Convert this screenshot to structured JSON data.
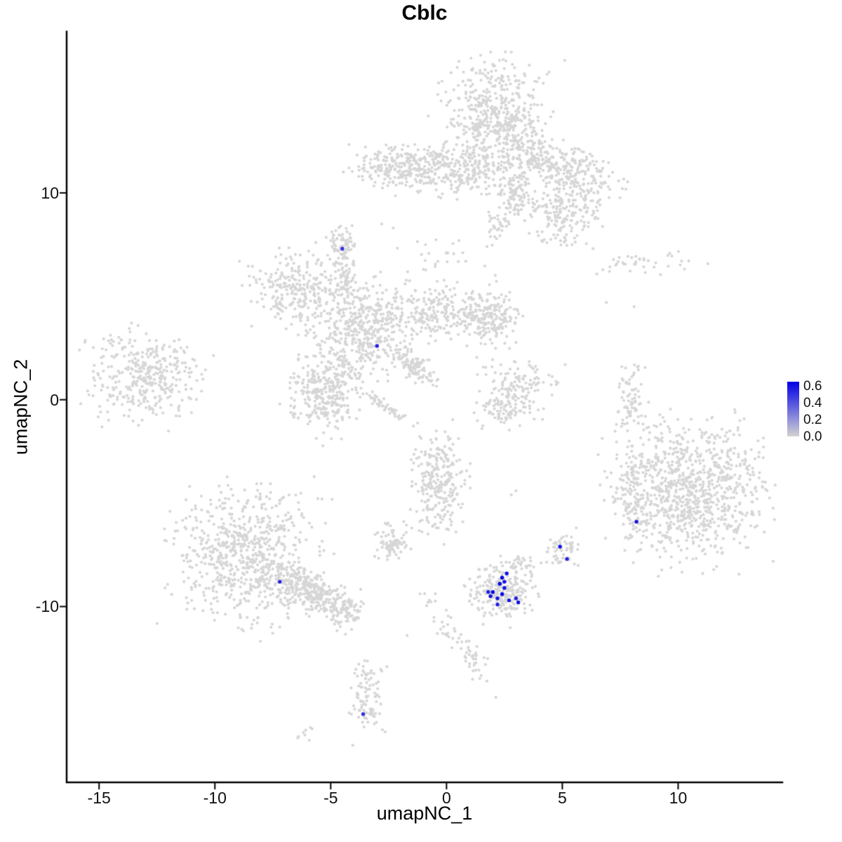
{
  "title": "Cblc",
  "axes": {
    "x_label": "umapNC_1",
    "y_label": "umapNC_2",
    "x_ticks": [
      -15,
      -10,
      -5,
      0,
      5,
      10
    ],
    "y_ticks": [
      10,
      0,
      -10
    ]
  },
  "legend": {
    "ticks": [
      "0.6",
      "0.4",
      "0.2",
      "0.0"
    ],
    "max_value": 0.65,
    "color_high": "#0000E6",
    "color_low": "#D3D3D3"
  },
  "chart_data": {
    "type": "scatter",
    "title": "Cblc",
    "xlabel": "umapNC_1",
    "ylabel": "umapNC_2",
    "xlim": [
      -16.4,
      14.5
    ],
    "ylim": [
      -18.5,
      17.8
    ],
    "seed": 42,
    "point_radius": 2.1,
    "highlight_radius": 2.7,
    "point_color_low": "#D6D6D6",
    "point_color_high": "#0000E6",
    "clusters": [
      {
        "name": "top-main",
        "cx": 2.1,
        "cy": 13.6,
        "sx": 1.05,
        "sy": 1.3,
        "n": 520,
        "rot": 0
      },
      {
        "name": "top-right-arm",
        "cx": 4.6,
        "cy": 11.4,
        "sx": 1.3,
        "sy": 0.55,
        "n": 330,
        "rot": -20
      },
      {
        "name": "top-band-left",
        "cx": -2.0,
        "cy": 11.3,
        "sx": 0.9,
        "sy": 0.5,
        "n": 230,
        "rot": 0
      },
      {
        "name": "top-band-mid",
        "cx": 0.6,
        "cy": 11.1,
        "sx": 1.1,
        "sy": 0.6,
        "n": 230,
        "rot": 0
      },
      {
        "name": "top-lobe-right",
        "cx": 5.0,
        "cy": 9.1,
        "sx": 0.75,
        "sy": 0.8,
        "n": 190,
        "rot": 25
      },
      {
        "name": "top-bridge",
        "cx": 2.95,
        "cy": 9.8,
        "sx": 0.3,
        "sy": 0.5,
        "n": 90,
        "rot": 0
      },
      {
        "name": "top-bridge-2",
        "cx": 2.2,
        "cy": 8.4,
        "sx": 0.3,
        "sy": 0.4,
        "n": 35,
        "rot": 0
      },
      {
        "name": "top-scatter-below",
        "cx": -0.3,
        "cy": 6.9,
        "sx": 0.9,
        "sy": 0.5,
        "n": 25,
        "rot": 0
      },
      {
        "name": "mid-center",
        "cx": -3.7,
        "cy": 3.3,
        "sx": 1.0,
        "sy": 1.1,
        "n": 430,
        "rot": 0
      },
      {
        "name": "mid-arm-topleft",
        "cx": -6.4,
        "cy": 5.3,
        "sx": 0.95,
        "sy": 0.85,
        "n": 260,
        "rot": 20
      },
      {
        "name": "mid-arm-right",
        "cx": -0.2,
        "cy": 4.2,
        "sx": 1.3,
        "sy": 0.65,
        "n": 300,
        "rot": 0
      },
      {
        "name": "mid-tip-right",
        "cx": 2.1,
        "cy": 3.9,
        "sx": 0.55,
        "sy": 0.7,
        "n": 130,
        "rot": 0
      },
      {
        "name": "mid-lobe-bottom",
        "cx": -5.2,
        "cy": 0.3,
        "sx": 0.8,
        "sy": 0.85,
        "n": 320,
        "rot": -30
      },
      {
        "name": "mid-tail",
        "cx": -1.5,
        "cy": 1.7,
        "sx": 0.6,
        "sy": 0.25,
        "n": 120,
        "rot": -38
      },
      {
        "name": "mid-streak",
        "cx": -2.4,
        "cy": -0.5,
        "sx": 0.7,
        "sy": 0.12,
        "n": 45,
        "rot": -37
      },
      {
        "name": "mid-stem",
        "cx": -4.4,
        "cy": 5.8,
        "sx": 0.25,
        "sy": 0.7,
        "n": 60,
        "rot": 0
      },
      {
        "name": "far-left",
        "cx": -13.1,
        "cy": 1.1,
        "sx": 1.15,
        "sy": 0.95,
        "n": 360,
        "rot": 0
      },
      {
        "name": "small-top",
        "cx": -4.55,
        "cy": 7.4,
        "sx": 0.32,
        "sy": 0.42,
        "n": 65,
        "rot": 0
      },
      {
        "name": "right-sparse-band",
        "cx": 8.5,
        "cy": 6.6,
        "sx": 1.3,
        "sy": 0.28,
        "n": 40,
        "rot": 0
      },
      {
        "name": "crescent-upper",
        "cx": 3.1,
        "cy": 0.8,
        "sx": 0.75,
        "sy": 0.5,
        "n": 110,
        "rot": 0
      },
      {
        "name": "crescent-lower",
        "cx": 2.6,
        "cy": -0.5,
        "sx": 0.7,
        "sy": 0.45,
        "n": 90,
        "rot": 0
      },
      {
        "name": "right-vertical",
        "cx": 8.0,
        "cy": 0.2,
        "sx": 0.28,
        "sy": 0.85,
        "n": 75,
        "rot": 0
      },
      {
        "name": "right-main",
        "cx": 10.5,
        "cy": -4.4,
        "sx": 1.55,
        "sy": 1.55,
        "n": 950,
        "rot": 0
      },
      {
        "name": "right-hook",
        "cx": 8.1,
        "cy": -4.8,
        "sx": 0.3,
        "sy": 0.9,
        "n": 70,
        "rot": 0
      },
      {
        "name": "center-lower",
        "cx": -0.35,
        "cy": -4.0,
        "sx": 0.55,
        "sy": 1.1,
        "n": 260,
        "rot": 0
      },
      {
        "name": "left-bottom-main",
        "cx": -8.6,
        "cy": -7.4,
        "sx": 1.45,
        "sy": 1.5,
        "n": 720,
        "rot": 0
      },
      {
        "name": "left-bottom-tail",
        "cx": -5.9,
        "cy": -9.3,
        "sx": 0.9,
        "sy": 0.4,
        "n": 280,
        "rot": -28
      },
      {
        "name": "left-bottom-tip",
        "cx": -4.4,
        "cy": -10.3,
        "sx": 0.45,
        "sy": 0.45,
        "n": 80,
        "rot": 0
      },
      {
        "name": "small-mid-bottom",
        "cx": -2.4,
        "cy": -6.9,
        "sx": 0.4,
        "sy": 0.45,
        "n": 75,
        "rot": 0
      },
      {
        "name": "bottom-center",
        "cx": 2.4,
        "cy": -9.3,
        "sx": 0.7,
        "sy": 0.65,
        "n": 240,
        "rot": 0
      },
      {
        "name": "bottom-center-nub",
        "cx": 3.3,
        "cy": -7.9,
        "sx": 0.25,
        "sy": 0.3,
        "n": 28,
        "rot": 0
      },
      {
        "name": "small-right-bottom",
        "cx": 4.95,
        "cy": -7.35,
        "sx": 0.35,
        "sy": 0.35,
        "n": 55,
        "rot": 0
      },
      {
        "name": "bottom-trail",
        "cx": 0.3,
        "cy": -11.4,
        "sx": 1.5,
        "sy": 0.3,
        "n": 45,
        "rot": -60
      },
      {
        "name": "bottom-trail-2",
        "cx": 1.2,
        "cy": -12.7,
        "sx": 0.35,
        "sy": 0.4,
        "n": 20,
        "rot": 0
      },
      {
        "name": "bottom-blob",
        "cx": -3.4,
        "cy": -14.5,
        "sx": 0.32,
        "sy": 0.85,
        "n": 95,
        "rot": 0
      },
      {
        "name": "bottom-speck",
        "cx": -6.1,
        "cy": -16.1,
        "sx": 0.22,
        "sy": 0.18,
        "n": 8,
        "rot": 0
      }
    ],
    "singles": [
      [
        -2.8,
        8.5
      ],
      [
        -2.3,
        8.3
      ],
      [
        8.1,
        4.5
      ],
      [
        6.9,
        4.7
      ],
      [
        -1.7,
        -11.4
      ],
      [
        -0.8,
        -9.8
      ],
      [
        3.0,
        -4.4
      ],
      [
        2.8,
        -4.6
      ],
      [
        5.6,
        -6.2
      ],
      [
        -4.0,
        6.5
      ]
    ],
    "highlighted_cells": [
      {
        "x": -4.5,
        "y": 7.3,
        "value": 0.5
      },
      {
        "x": -3.0,
        "y": 2.6,
        "value": 0.55
      },
      {
        "x": 8.2,
        "y": -5.9,
        "value": 0.6
      },
      {
        "x": -7.2,
        "y": -8.8,
        "value": 0.55
      },
      {
        "x": 4.9,
        "y": -7.1,
        "value": 0.6
      },
      {
        "x": 5.2,
        "y": -7.7,
        "value": 0.55
      },
      {
        "x": -3.6,
        "y": -15.2,
        "value": 0.5
      },
      {
        "x": 2.0,
        "y": -9.3,
        "value": 0.65
      },
      {
        "x": 2.2,
        "y": -9.6,
        "value": 0.6
      },
      {
        "x": 2.4,
        "y": -9.4,
        "value": 0.65
      },
      {
        "x": 2.5,
        "y": -9.1,
        "value": 0.6
      },
      {
        "x": 2.2,
        "y": -9.9,
        "value": 0.55
      },
      {
        "x": 1.9,
        "y": -9.5,
        "value": 0.6
      },
      {
        "x": 2.7,
        "y": -9.7,
        "value": 0.6
      },
      {
        "x": 3.0,
        "y": -9.6,
        "value": 0.55
      },
      {
        "x": 3.1,
        "y": -9.8,
        "value": 0.6
      },
      {
        "x": 2.4,
        "y": -8.6,
        "value": 0.65
      },
      {
        "x": 2.5,
        "y": -8.8,
        "value": 0.6
      },
      {
        "x": 2.6,
        "y": -8.4,
        "value": 0.6
      },
      {
        "x": 2.3,
        "y": -8.9,
        "value": 0.65
      },
      {
        "x": 1.8,
        "y": -9.3,
        "value": 0.55
      }
    ]
  }
}
